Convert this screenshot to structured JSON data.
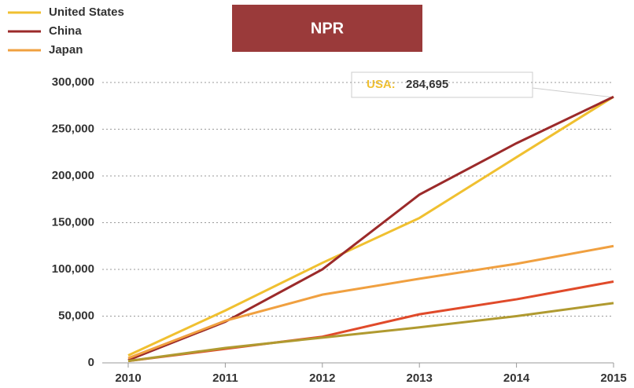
{
  "chart_data": {
    "type": "line",
    "badge": "NPR",
    "annotation": {
      "label": "USA:",
      "text": "284,695",
      "color": "#f0c030"
    },
    "x": [
      2010,
      2011,
      2012,
      2013,
      2014,
      2015
    ],
    "xlim": [
      2010,
      2015
    ],
    "xticks": [
      2010,
      2011,
      2012,
      2013,
      2014,
      2015
    ],
    "ylim": [
      0,
      300000
    ],
    "yticks": [
      0,
      {
        "value": 50000,
        "label": "50,000"
      },
      {
        "value": 100000,
        "label": "100,000"
      },
      {
        "value": 150000,
        "label": "150,000"
      },
      {
        "value": 200000,
        "label": "200,000"
      },
      {
        "value": 250000,
        "label": "250,000"
      },
      {
        "value": 300000,
        "label": "300,000"
      }
    ],
    "grid": true,
    "legend": "top-left",
    "series": [
      {
        "name": "United States",
        "color": "#f0c030",
        "values": [
          8000,
          56000,
          107000,
          155000,
          220000,
          284695
        ]
      },
      {
        "name": "China",
        "color": "#9b2a2a",
        "values": [
          3000,
          44000,
          100000,
          180000,
          235000,
          284695
        ]
      },
      {
        "name": "Japan",
        "color": "#f0a040",
        "values": [
          5000,
          45000,
          73000,
          90000,
          106000,
          125000
        ]
      },
      {
        "color": "#e04a2a",
        "values": [
          2000,
          15000,
          28000,
          52000,
          68000,
          87000
        ]
      },
      {
        "color": "#b09a30",
        "values": [
          2000,
          16000,
          27000,
          38000,
          50000,
          64000
        ]
      }
    ]
  }
}
